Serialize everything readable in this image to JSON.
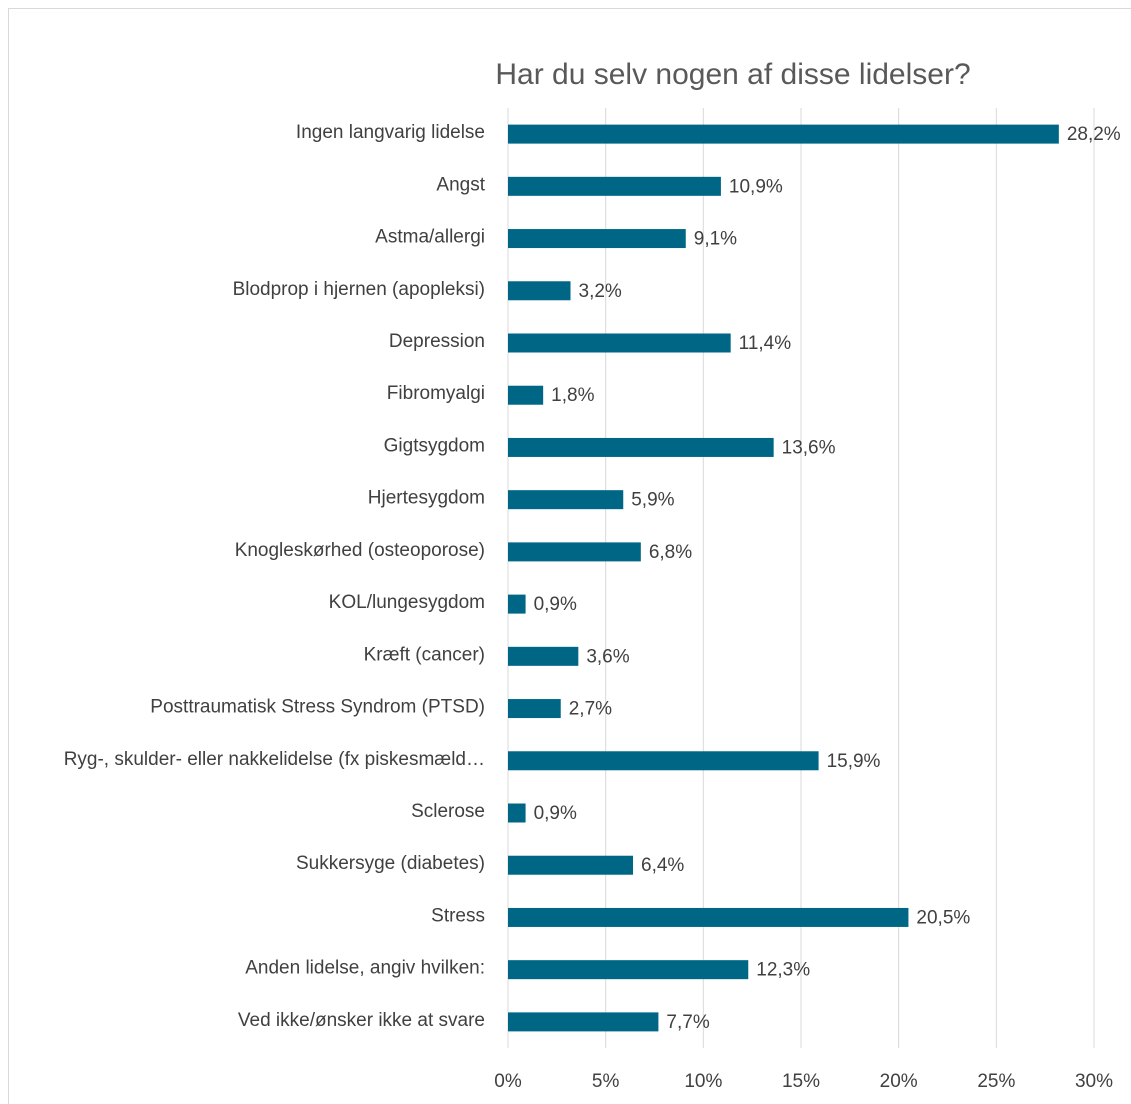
{
  "chart_data": {
    "type": "bar",
    "orientation": "horizontal",
    "title": "Har du selv nogen af disse lidelser?",
    "categories": [
      "Ingen langvarig lidelse",
      "Angst",
      "Astma/allergi",
      "Blodprop i hjernen (apopleksi)",
      "Depression",
      "Fibromyalgi",
      "Gigtsygdom",
      "Hjertesygdom",
      "Knogleskørhed (osteoporose)",
      "KOL/lungesygdom",
      "Kræft (cancer)",
      "Posttraumatisk Stress Syndrom (PTSD)",
      "Ryg-, skulder- eller nakkelidelse (fx piskesmæld…",
      "Sclerose",
      "Sukkersyge (diabetes)",
      "Stress",
      "Anden lidelse, angiv hvilken:",
      "Ved ikke/ønsker ikke at svare"
    ],
    "values": [
      28.2,
      10.9,
      9.1,
      3.2,
      11.4,
      1.8,
      13.6,
      5.9,
      6.8,
      0.9,
      3.6,
      2.7,
      15.9,
      0.9,
      6.4,
      20.5,
      12.3,
      7.7
    ],
    "value_labels": [
      "28,2%",
      "10,9%",
      "9,1%",
      "3,2%",
      "11,4%",
      "1,8%",
      "13,6%",
      "5,9%",
      "6,8%",
      "0,9%",
      "3,6%",
      "2,7%",
      "15,9%",
      "0,9%",
      "6,4%",
      "20,5%",
      "12,3%",
      "7,7%"
    ],
    "color": "#006685",
    "xlim": [
      0,
      30
    ],
    "xticks": [
      {
        "value": 0,
        "label": "0%"
      },
      {
        "value": 5,
        "label": "5%"
      },
      {
        "value": 10,
        "label": "10%"
      },
      {
        "value": 15,
        "label": "15%"
      },
      {
        "value": 20,
        "label": "20%"
      },
      {
        "value": 25,
        "label": "25%"
      },
      {
        "value": 30,
        "label": "30%"
      }
    ],
    "grid": true
  }
}
